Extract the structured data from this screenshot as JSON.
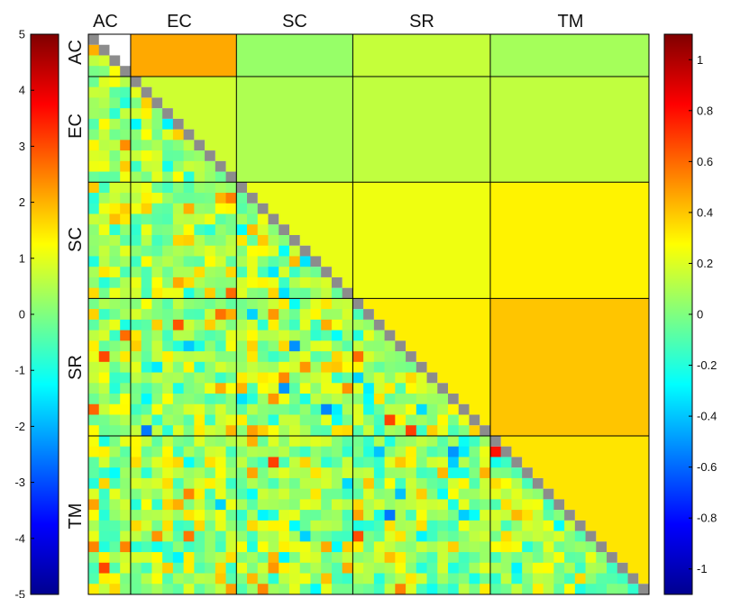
{
  "chart_data": {
    "type": "heatmap",
    "title": "",
    "xlabel": "",
    "ylabel": "",
    "groups": [
      "AC",
      "EC",
      "SC",
      "SR",
      "TM"
    ],
    "group_sizes": [
      4,
      10,
      11,
      13,
      15
    ],
    "lower_triangle": {
      "description_scale": "left colorbar",
      "clim": [
        -5,
        5
      ],
      "ticks": [
        "5",
        "4",
        "3",
        "2",
        "1",
        "0",
        "-1",
        "-2",
        "-3",
        "-4",
        "-5"
      ],
      "diagonal_color": "#8c8c8c"
    },
    "upper_triangle_blocks": {
      "scale": "right colorbar",
      "clim": [
        -1.1,
        1.1
      ],
      "ticks": [
        "1",
        "0.8",
        "0.6",
        "0.4",
        "0.2",
        "0",
        "-0.2",
        "-0.4",
        "-0.6",
        "-0.8",
        "-1"
      ],
      "values": [
        {
          "row": "AC",
          "col": "EC",
          "value": 0.46
        },
        {
          "row": "AC",
          "col": "SC",
          "value": 0.05
        },
        {
          "row": "AC",
          "col": "SR",
          "value": 0.15
        },
        {
          "row": "AC",
          "col": "TM",
          "value": 0.08
        },
        {
          "row": "EC",
          "col": "EC",
          "value": 0.17
        },
        {
          "row": "EC",
          "col": "SC",
          "value": 0.1
        },
        {
          "row": "EC",
          "col": "SR",
          "value": 0.14
        },
        {
          "row": "EC",
          "col": "TM",
          "value": 0.14
        },
        {
          "row": "SC",
          "col": "SC",
          "value": 0.23
        },
        {
          "row": "SC",
          "col": "SR",
          "value": 0.24
        },
        {
          "row": "SC",
          "col": "TM",
          "value": 0.3
        },
        {
          "row": "SR",
          "col": "SR",
          "value": 0.31
        },
        {
          "row": "SR",
          "col": "TM",
          "value": 0.4
        },
        {
          "row": "TM",
          "col": "TM",
          "value": 0.33
        }
      ]
    },
    "colormap": "jet",
    "grid": false
  },
  "colors": {
    "diagonal": "#8c8c8c",
    "block_border": "#000000"
  }
}
